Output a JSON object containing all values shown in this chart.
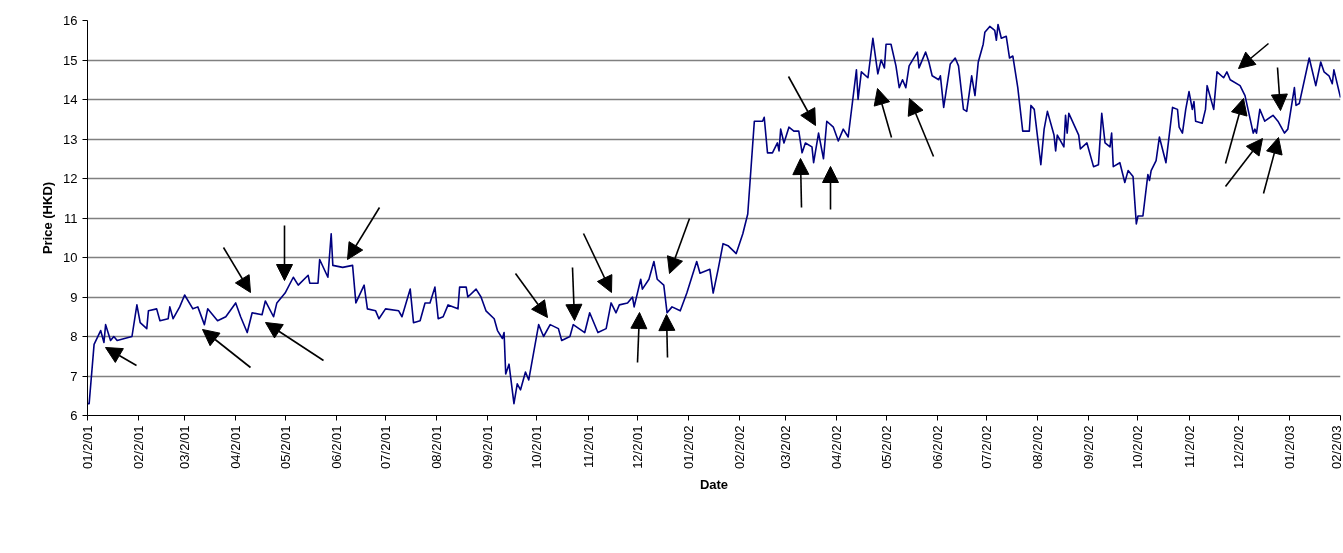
{
  "chart_data": {
    "type": "line",
    "xlabel": "Date",
    "ylabel": "Price (HKD)",
    "x": [
      "2001-01-02",
      "2001-01-03",
      "2001-01-06",
      "2001-01-10",
      "2001-01-12",
      "2001-01-13",
      "2001-01-16",
      "2001-01-18",
      "2001-01-20",
      "2001-01-29",
      "2001-02-01",
      "2001-02-03",
      "2001-02-07",
      "2001-02-08",
      "2001-02-13",
      "2001-02-15",
      "2001-02-20",
      "2001-02-21",
      "2001-02-23",
      "2001-02-27",
      "2001-03-02",
      "2001-03-07",
      "2001-03-10",
      "2001-03-14",
      "2001-03-16",
      "2001-03-22",
      "2001-03-27",
      "2001-04-02",
      "2001-04-05",
      "2001-04-09",
      "2001-04-12",
      "2001-04-18",
      "2001-04-20",
      "2001-04-25",
      "2001-04-27",
      "2001-05-02",
      "2001-05-07",
      "2001-05-10",
      "2001-05-16",
      "2001-05-17",
      "2001-05-22",
      "2001-05-23",
      "2001-05-28",
      "2001-05-30",
      "2001-05-31",
      "2001-06-06",
      "2001-06-12",
      "2001-06-14",
      "2001-06-19",
      "2001-06-21",
      "2001-06-26",
      "2001-06-28",
      "2001-07-02",
      "2001-07-10",
      "2001-07-12",
      "2001-07-17",
      "2001-07-19",
      "2001-07-23",
      "2001-07-26",
      "2001-07-29",
      "2001-08-01",
      "2001-08-03",
      "2001-08-06",
      "2001-08-09",
      "2001-08-15",
      "2001-08-16",
      "2001-08-20",
      "2001-08-21",
      "2001-08-26",
      "2001-08-29",
      "2001-09-01",
      "2001-09-06",
      "2001-09-08",
      "2001-09-11",
      "2001-09-12",
      "2001-09-13",
      "2001-09-15",
      "2001-09-18",
      "2001-09-20",
      "2001-09-22",
      "2001-09-25",
      "2001-09-27",
      "2001-10-03",
      "2001-10-06",
      "2001-10-10",
      "2001-10-15",
      "2001-10-17",
      "2001-10-22",
      "2001-10-24",
      "2001-10-31",
      "2001-11-03",
      "2001-11-08",
      "2001-11-13",
      "2001-11-16",
      "2001-11-19",
      "2001-11-21",
      "2001-11-26",
      "2001-11-29",
      "2001-11-30",
      "2001-12-04",
      "2001-12-05",
      "2001-12-09",
      "2001-12-12",
      "2001-12-14",
      "2001-12-18",
      "2001-12-20",
      "2001-12-23",
      "2001-12-28",
      "2002-01-01",
      "2002-01-07",
      "2002-01-09",
      "2002-01-15",
      "2002-01-17",
      "2002-01-20",
      "2002-01-23",
      "2002-01-26",
      "2002-01-31",
      "2002-02-04",
      "2002-02-07",
      "2002-02-11",
      "2002-02-16",
      "2002-02-17",
      "2002-02-19",
      "2002-02-22",
      "2002-02-25",
      "2002-02-26",
      "2002-02-27",
      "2002-03-01",
      "2002-03-04",
      "2002-03-07",
      "2002-03-10",
      "2002-03-12",
      "2002-03-14",
      "2002-03-18",
      "2002-03-19",
      "2002-03-22",
      "2002-03-25",
      "2002-03-27",
      "2002-03-31",
      "2002-04-03",
      "2002-04-06",
      "2002-04-09",
      "2002-04-14",
      "2002-04-15",
      "2002-04-17",
      "2002-04-21",
      "2002-04-24",
      "2002-04-27",
      "2002-04-29",
      "2002-05-01",
      "2002-05-02",
      "2002-05-05",
      "2002-05-08",
      "2002-05-10",
      "2002-05-12",
      "2002-05-14",
      "2002-05-16",
      "2002-05-21",
      "2002-05-22",
      "2002-05-26",
      "2002-05-28",
      "2002-05-30",
      "2002-06-03",
      "2002-06-04",
      "2002-06-06",
      "2002-06-10",
      "2002-06-13",
      "2002-06-15",
      "2002-06-18",
      "2002-06-20",
      "2002-06-23",
      "2002-06-25",
      "2002-06-27",
      "2002-06-30",
      "2002-07-01",
      "2002-07-04",
      "2002-07-07",
      "2002-07-08",
      "2002-07-09",
      "2002-07-11",
      "2002-07-14",
      "2002-07-16",
      "2002-07-18",
      "2002-07-21",
      "2002-07-24",
      "2002-07-28",
      "2002-07-29",
      "2002-07-31",
      "2002-08-04",
      "2002-08-06",
      "2002-08-08",
      "2002-08-12",
      "2002-08-13",
      "2002-08-14",
      "2002-08-18",
      "2002-08-19",
      "2002-08-20",
      "2002-08-21",
      "2002-08-27",
      "2002-08-28",
      "2002-09-01",
      "2002-09-05",
      "2002-09-08",
      "2002-09-10",
      "2002-09-12",
      "2002-09-15",
      "2002-09-16",
      "2002-09-17",
      "2002-09-21",
      "2002-09-24",
      "2002-09-26",
      "2002-09-29",
      "2002-10-01",
      "2002-10-02",
      "2002-10-05",
      "2002-10-08",
      "2002-10-09",
      "2002-10-10",
      "2002-10-13",
      "2002-10-15",
      "2002-10-19",
      "2002-10-23",
      "2002-10-26",
      "2002-10-27",
      "2002-10-29",
      "2002-10-31",
      "2002-11-02",
      "2002-11-04",
      "2002-11-05",
      "2002-11-06",
      "2002-11-10",
      "2002-11-12",
      "2002-11-13",
      "2002-11-17",
      "2002-11-19",
      "2002-11-23",
      "2002-11-25",
      "2002-11-27",
      "2002-12-03",
      "2002-12-06",
      "2002-12-11",
      "2002-12-12",
      "2002-12-13",
      "2002-12-15",
      "2002-12-18",
      "2002-12-23",
      "2002-12-26",
      "2002-12-30",
      "2003-01-01",
      "2003-01-05",
      "2003-01-06",
      "2003-01-08",
      "2003-01-14",
      "2003-01-18",
      "2003-01-21",
      "2003-01-23",
      "2003-01-26",
      "2003-01-28",
      "2003-01-29",
      "2003-02-02"
    ],
    "series": [
      {
        "color": "#000080",
        "values": [
          6.3,
          6.3,
          7.8,
          8.15,
          7.85,
          8.3,
          7.9,
          8.0,
          7.9,
          8.0,
          8.8,
          8.35,
          8.2,
          8.65,
          8.7,
          8.4,
          8.45,
          8.75,
          8.45,
          8.75,
          9.05,
          8.7,
          8.75,
          8.3,
          8.7,
          8.4,
          8.5,
          8.85,
          8.5,
          8.1,
          8.6,
          8.55,
          8.9,
          8.5,
          8.85,
          9.1,
          9.5,
          9.3,
          9.55,
          9.35,
          9.35,
          9.95,
          9.5,
          10.6,
          9.8,
          9.75,
          9.8,
          8.85,
          9.3,
          8.7,
          8.65,
          8.45,
          8.7,
          8.65,
          8.5,
          9.2,
          8.35,
          8.4,
          8.85,
          8.85,
          9.25,
          8.45,
          8.5,
          8.8,
          8.7,
          9.25,
          9.25,
          9.0,
          9.2,
          9.0,
          8.65,
          8.45,
          8.15,
          7.95,
          8.1,
          7.05,
          7.3,
          6.3,
          6.8,
          6.65,
          7.1,
          6.9,
          8.3,
          8.0,
          8.3,
          8.2,
          7.9,
          8.0,
          8.3,
          8.1,
          8.6,
          8.1,
          8.2,
          8.85,
          8.6,
          8.8,
          8.85,
          9.0,
          8.75,
          9.45,
          9.2,
          9.45,
          9.9,
          9.45,
          9.3,
          8.6,
          8.75,
          8.65,
          9.1,
          9.9,
          9.6,
          9.7,
          9.1,
          9.7,
          10.35,
          10.3,
          10.1,
          10.6,
          11.1,
          13.45,
          13.45,
          13.55,
          12.65,
          12.65,
          12.9,
          12.7,
          13.25,
          12.9,
          13.3,
          13.2,
          13.2,
          12.65,
          12.9,
          12.8,
          12.4,
          13.15,
          12.5,
          13.45,
          13.3,
          12.95,
          13.25,
          13.05,
          14.75,
          14.0,
          14.7,
          14.55,
          15.55,
          14.65,
          15.0,
          14.8,
          15.4,
          15.4,
          14.85,
          14.3,
          14.5,
          14.3,
          14.85,
          15.2,
          14.8,
          15.2,
          14.95,
          14.6,
          14.5,
          14.6,
          13.8,
          14.9,
          15.05,
          14.85,
          13.75,
          13.7,
          14.6,
          14.1,
          14.95,
          15.4,
          15.7,
          15.85,
          15.75,
          15.5,
          15.9,
          15.55,
          15.6,
          15.05,
          15.1,
          14.3,
          13.2,
          13.2,
          13.85,
          13.75,
          12.35,
          13.25,
          13.7,
          13.1,
          12.7,
          13.1,
          12.8,
          13.6,
          13.15,
          13.65,
          13.1,
          12.75,
          12.9,
          12.3,
          12.35,
          13.65,
          12.9,
          12.8,
          13.15,
          12.3,
          12.4,
          11.9,
          12.2,
          12.05,
          10.85,
          11.05,
          11.05,
          12.1,
          11.95,
          12.2,
          12.45,
          13.05,
          12.4,
          13.8,
          13.75,
          13.3,
          13.15,
          13.75,
          14.2,
          13.75,
          13.95,
          13.45,
          13.4,
          13.75,
          14.35,
          13.75,
          14.7,
          14.55,
          14.7,
          14.5,
          14.35,
          14.1,
          13.15,
          13.25,
          13.15,
          13.75,
          13.45,
          13.6,
          13.45,
          13.15,
          13.25,
          14.3,
          13.85,
          13.9,
          15.05,
          14.35,
          14.95,
          14.7,
          14.6,
          14.4,
          14.75,
          14.05
        ]
      }
    ],
    "xlim": [
      "2001-01-02",
      "2003-02-02"
    ],
    "xticks": [
      {
        "value": "2001-01-02",
        "label": "01/2/01"
      },
      {
        "value": "2001-02-02",
        "label": "02/2/01"
      },
      {
        "value": "2001-03-02",
        "label": "03/2/01"
      },
      {
        "value": "2001-04-02",
        "label": "04/2/01"
      },
      {
        "value": "2001-05-02",
        "label": "05/2/01"
      },
      {
        "value": "2001-06-02",
        "label": "06/2/01"
      },
      {
        "value": "2001-07-02",
        "label": "07/2/01"
      },
      {
        "value": "2001-08-02",
        "label": "08/2/01"
      },
      {
        "value": "2001-09-02",
        "label": "09/2/01"
      },
      {
        "value": "2001-10-02",
        "label": "10/2/01"
      },
      {
        "value": "2001-11-02",
        "label": "11/2/01"
      },
      {
        "value": "2001-12-02",
        "label": "12/2/01"
      },
      {
        "value": "2002-01-02",
        "label": "01/2/02"
      },
      {
        "value": "2002-02-02",
        "label": "02/2/02"
      },
      {
        "value": "2002-03-02",
        "label": "03/2/02"
      },
      {
        "value": "2002-04-02",
        "label": "04/2/02"
      },
      {
        "value": "2002-05-02",
        "label": "05/2/02"
      },
      {
        "value": "2002-06-02",
        "label": "06/2/02"
      },
      {
        "value": "2002-07-02",
        "label": "07/2/02"
      },
      {
        "value": "2002-08-02",
        "label": "08/2/02"
      },
      {
        "value": "2002-09-02",
        "label": "09/2/02"
      },
      {
        "value": "2002-10-02",
        "label": "10/2/02"
      },
      {
        "value": "2002-11-02",
        "label": "11/2/02"
      },
      {
        "value": "2002-12-02",
        "label": "12/2/02"
      },
      {
        "value": "2003-01-02",
        "label": "01/2/03"
      },
      {
        "value": "2003-02-02",
        "label": "02/2/03"
      }
    ],
    "ylim": [
      6,
      16
    ],
    "yticks": [
      6,
      7,
      8,
      9,
      10,
      11,
      12,
      13,
      14,
      15,
      16
    ],
    "grid": "y",
    "marker": "none",
    "line_style": "solid"
  }
}
